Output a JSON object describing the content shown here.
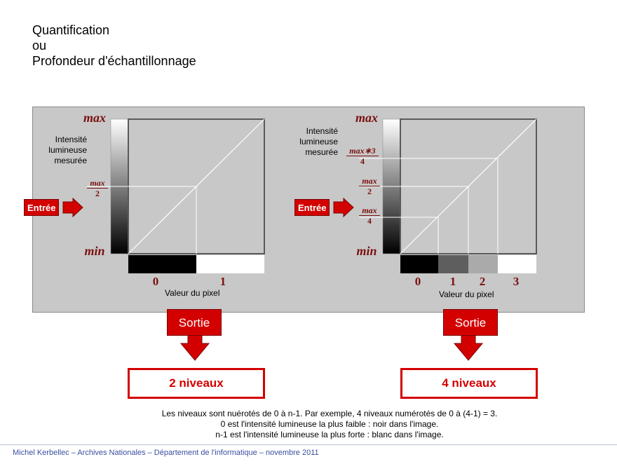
{
  "title": {
    "line1": "Quantification",
    "line2": "ou",
    "line3": "Profondeur d'échantillonnage"
  },
  "left_diagram": {
    "y_max": "max",
    "y_min": "min",
    "half_num": "max",
    "half_den": "2",
    "ylabel_l1": "Intensité",
    "ylabel_l2": "lumineuse",
    "ylabel_l3": "mesurée",
    "entree": "Entrée",
    "x_values": [
      "0",
      "1"
    ],
    "xlabel": "Valeur du pixel",
    "levels": 2
  },
  "right_diagram": {
    "y_max": "max",
    "y_min": "min",
    "f3_num": "max∗3",
    "f3_den": "4",
    "f2_num": "max",
    "f2_den": "2",
    "f1_num": "max",
    "f1_den": "4",
    "ylabel_l1": "Intensité",
    "ylabel_l2": "lumineuse",
    "ylabel_l3": "mesurée",
    "entree": "Entrée",
    "x_values": [
      "0",
      "1",
      "2",
      "3"
    ],
    "xlabel": "Valeur du pixel",
    "levels": 4
  },
  "outputs": {
    "sortie_left": "Sortie",
    "sortie_right": "Sortie",
    "levels_left": "2 niveaux",
    "levels_right": "4 niveaux"
  },
  "notes": {
    "line1": "Les niveaux sont nuérotés de 0 à n-1. Par exemple, 4 niveaux numérotés de 0 à (4-1) = 3.",
    "line2": "0 est l'intensité lumineuse la plus faible : noir dans l'image.",
    "line3": "n-1 est l'intensité lumineuse la plus forte : blanc dans l'image."
  },
  "footer": "Michel Kerbellec – Archives Nationales – Département de l'informatique – novembre 2011",
  "colors": {
    "accent": "#d30000",
    "label": "#7a0f0f",
    "panel": "#c8c8c8",
    "footer": "#3a4fa0"
  }
}
